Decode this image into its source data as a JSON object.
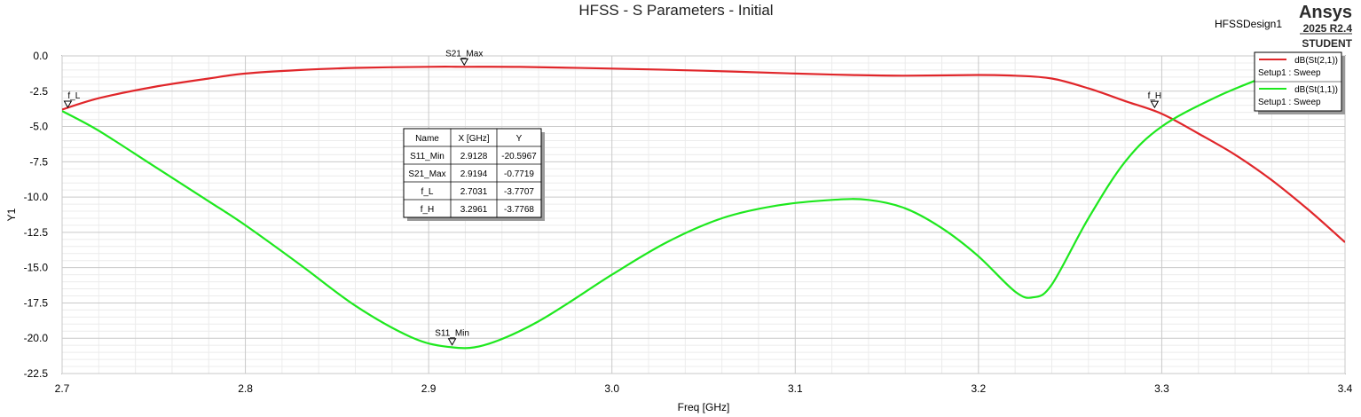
{
  "chart_data": {
    "type": "line",
    "title": "HFSS - S Parameters - Initial",
    "design": "HFSSDesign1",
    "brand": {
      "name": "Ansys",
      "version": "2025 R2.4",
      "edition": "STUDENT"
    },
    "xlabel": "Freq [GHz]",
    "ylabel": "Y1",
    "xlim": [
      2.7,
      3.4
    ],
    "ylim": [
      -22.5,
      0.0
    ],
    "x_ticks": [
      "2.7",
      "2.8",
      "2.9",
      "3.0",
      "3.1",
      "3.2",
      "3.3",
      "3.4"
    ],
    "y_ticks": [
      "0.0",
      "-2.5",
      "-5.0",
      "-7.5",
      "-10.0",
      "-12.5",
      "-15.0",
      "-17.5",
      "-20.0",
      "-22.5"
    ],
    "grid": true,
    "legend_position": "top-right",
    "series": [
      {
        "name": "dB(St(2,1))",
        "setup": "Setup1 : Sweep",
        "color": "#e0262a",
        "x": [
          2.7,
          2.72,
          2.75,
          2.78,
          2.8,
          2.83,
          2.86,
          2.9,
          2.92,
          2.95,
          3.0,
          3.05,
          3.1,
          3.13,
          3.16,
          3.2,
          3.22,
          3.24,
          3.26,
          3.28,
          3.3,
          3.32,
          3.34,
          3.36,
          3.38,
          3.4
        ],
        "y": [
          -3.8,
          -3.0,
          -2.2,
          -1.6,
          -1.25,
          -1.0,
          -0.85,
          -0.77,
          -0.77,
          -0.78,
          -0.9,
          -1.05,
          -1.25,
          -1.35,
          -1.4,
          -1.35,
          -1.4,
          -1.6,
          -2.3,
          -3.2,
          -4.1,
          -5.5,
          -7.0,
          -8.8,
          -10.9,
          -13.2
        ]
      },
      {
        "name": "dB(St(1,1))",
        "setup": "Setup1 : Sweep",
        "color": "#1ee81e",
        "x": [
          2.7,
          2.72,
          2.75,
          2.78,
          2.8,
          2.83,
          2.86,
          2.89,
          2.91,
          2.93,
          2.96,
          3.0,
          3.03,
          3.06,
          3.09,
          3.12,
          3.14,
          3.16,
          3.18,
          3.2,
          3.22,
          3.23,
          3.24,
          3.26,
          3.28,
          3.3,
          3.33,
          3.36,
          3.38,
          3.4
        ],
        "y": [
          -3.9,
          -5.3,
          -7.8,
          -10.3,
          -12.0,
          -14.8,
          -17.7,
          -19.9,
          -20.6,
          -20.5,
          -18.8,
          -15.5,
          -13.2,
          -11.5,
          -10.6,
          -10.2,
          -10.2,
          -10.8,
          -12.2,
          -14.2,
          -16.7,
          -17.1,
          -16.2,
          -11.5,
          -7.5,
          -5.0,
          -2.9,
          -1.3,
          -0.4,
          0.2
        ]
      }
    ],
    "markers": [
      {
        "name": "S21_Max",
        "x": 2.9194,
        "y": -0.7719,
        "x_label": "2.9194",
        "y_label": "-0.7719",
        "label_side": "above"
      },
      {
        "name": "S11_Min",
        "x": 2.9128,
        "y": -20.5967,
        "x_label": "2.9128",
        "y_label": "-20.5967",
        "label_side": "above"
      },
      {
        "name": "f_L",
        "x": 2.7031,
        "y": -3.7707,
        "x_label": "2.7031",
        "y_label": "-3.7707",
        "label_side": "above"
      },
      {
        "name": "f_H",
        "x": 3.2961,
        "y": -3.7768,
        "x_label": "3.2961",
        "y_label": "-3.7768",
        "label_side": "above"
      }
    ],
    "marker_table": {
      "headers": [
        "Name",
        "X [GHz]",
        "Y"
      ],
      "rows": [
        [
          "S11_Min",
          "2.9128",
          "-20.5967"
        ],
        [
          "S21_Max",
          "2.9194",
          "-0.7719"
        ],
        [
          "f_L",
          "2.7031",
          "-3.7707"
        ],
        [
          "f_H",
          "3.2961",
          "-3.7768"
        ]
      ]
    }
  }
}
